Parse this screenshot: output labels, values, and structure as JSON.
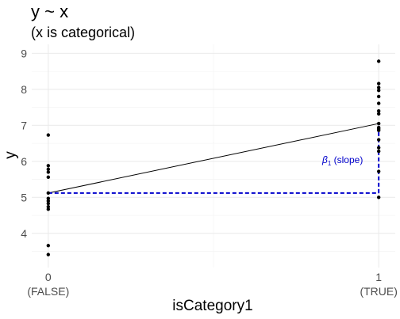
{
  "chart_data": {
    "type": "scatter",
    "title": "y ~ x",
    "subtitle": "(x is categorical)",
    "xlabel": "isCategory1",
    "ylabel": "y",
    "x_ticks": [
      {
        "value": 0,
        "label": "0",
        "sublabel": "(FALSE)"
      },
      {
        "value": 1,
        "label": "1",
        "sublabel": "(TRUE)"
      }
    ],
    "y_ticks": [
      4,
      5,
      6,
      7,
      8,
      9
    ],
    "xlim": [
      -0.05,
      1.05
    ],
    "ylim": [
      3.05,
      9.25
    ],
    "grid": true,
    "points": {
      "x0": [
        6.73,
        5.88,
        5.78,
        5.7,
        5.56,
        5.12,
        4.97,
        4.9,
        4.83,
        4.74,
        4.67,
        3.66,
        3.41
      ],
      "x1": [
        8.78,
        8.16,
        8.05,
        7.97,
        7.8,
        7.61,
        7.4,
        7.32,
        7.05,
        6.94,
        6.9,
        6.86,
        6.6,
        6.38,
        6.28,
        5.72,
        5.0
      ]
    },
    "fit_line": {
      "x": [
        0,
        1
      ],
      "y": [
        5.12,
        7.05
      ],
      "color": "#000000"
    },
    "baseline": {
      "y": 5.12,
      "color": "#0000CC"
    },
    "annotation": {
      "symbol": "β",
      "subscript": "1",
      "text": "(slope)",
      "color": "#0000CC"
    }
  }
}
